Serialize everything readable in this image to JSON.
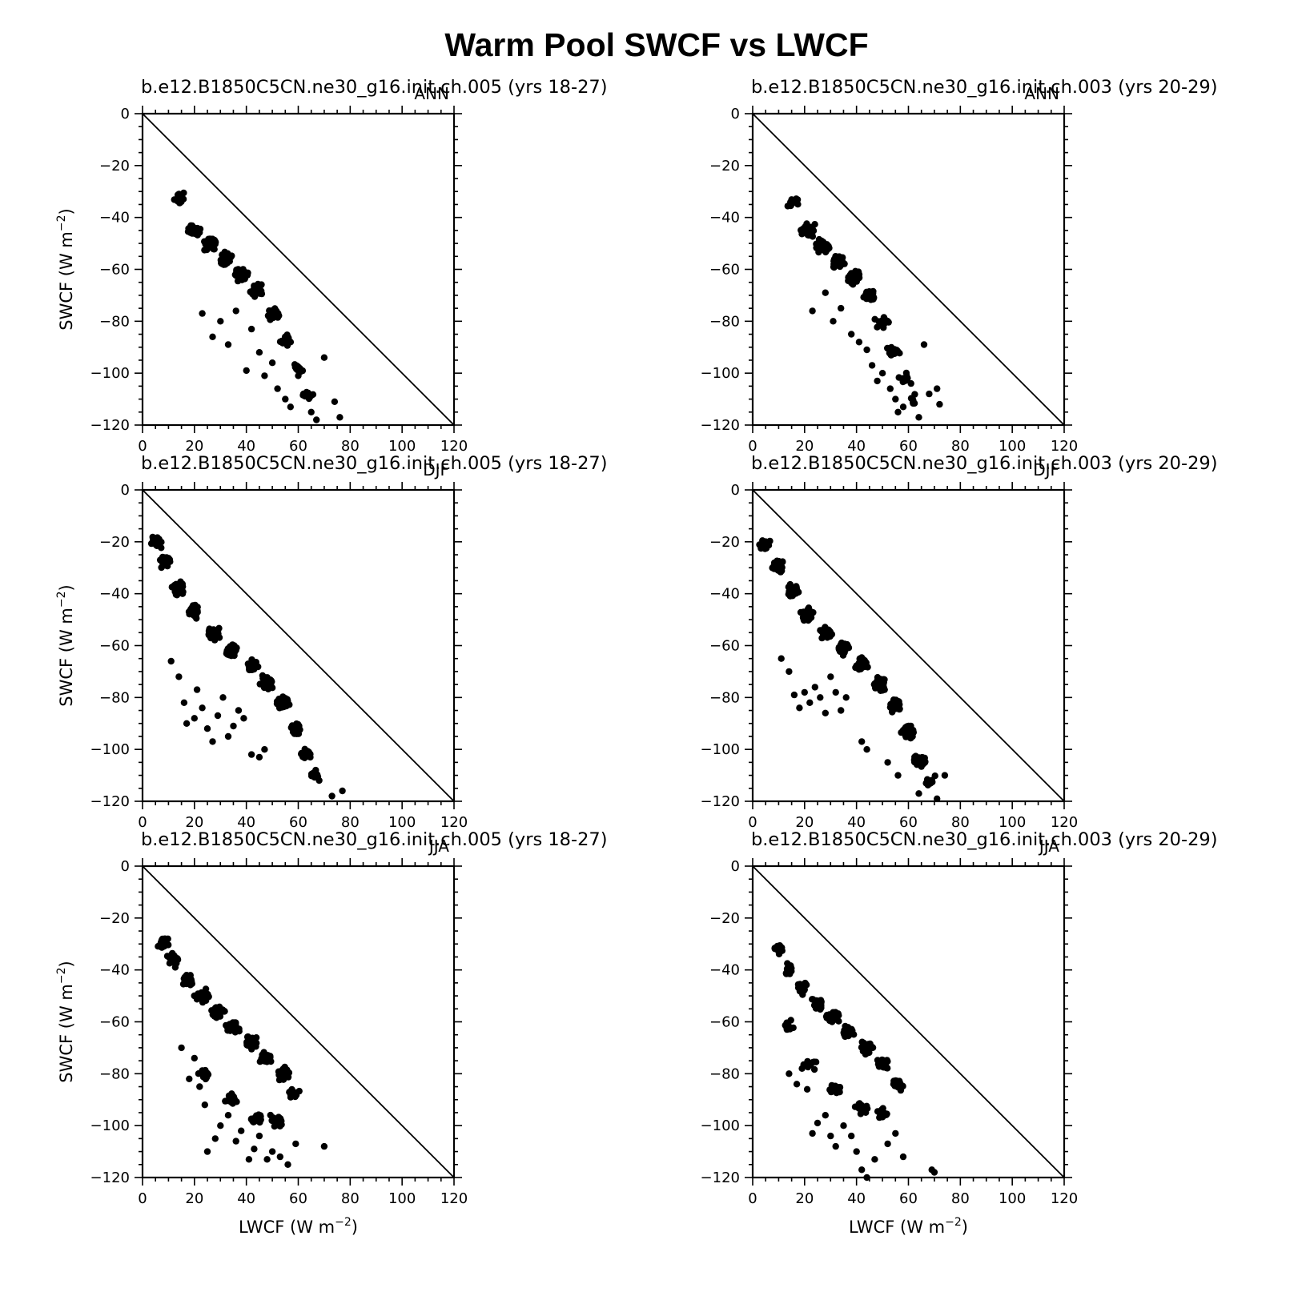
{
  "figure": {
    "title": "Warm Pool SWCF vs LWCF"
  },
  "chart_data": [
    {
      "type": "scatter",
      "panel_title": "b.e12.B1850C5CN.ne30_g16.init.ch.005 (yrs 18-27)",
      "season": "ANN",
      "xlabel": "",
      "ylabel": "SWCF (W m⁻²)",
      "xlim": [
        0,
        120
      ],
      "ylim": [
        -120,
        0
      ],
      "x_ticks": [
        "0",
        "20",
        "40",
        "60",
        "80",
        "100",
        "120"
      ],
      "y_ticks": [
        "0",
        "-20",
        "-40",
        "-60",
        "-80",
        "-100",
        "-120"
      ],
      "reference_line": {
        "from": [
          0,
          0
        ],
        "to": [
          120,
          -120
        ]
      },
      "cloud": [
        {
          "x": 14,
          "y": -33,
          "n": 14
        },
        {
          "x": 20,
          "y": -45,
          "n": 40
        },
        {
          "x": 26,
          "y": -50,
          "n": 55
        },
        {
          "x": 32,
          "y": -56,
          "n": 60
        },
        {
          "x": 38,
          "y": -62,
          "n": 55
        },
        {
          "x": 44,
          "y": -68,
          "n": 45
        },
        {
          "x": 50,
          "y": -77,
          "n": 30
        },
        {
          "x": 55,
          "y": -87,
          "n": 18
        },
        {
          "x": 60,
          "y": -98,
          "n": 12
        },
        {
          "x": 64,
          "y": -108,
          "n": 8
        }
      ],
      "x": [
        23,
        27,
        30,
        33,
        36,
        40,
        42,
        45,
        47,
        50,
        52,
        55,
        57,
        60,
        62,
        65,
        67,
        70,
        74,
        76
      ],
      "y": [
        -77,
        -86,
        -80,
        -89,
        -76,
        -99,
        -83,
        -92,
        -101,
        -96,
        -106,
        -110,
        -113,
        -101,
        -108,
        -115,
        -118,
        -94,
        -111,
        -117
      ]
    },
    {
      "type": "scatter",
      "panel_title": "b.e12.B1850C5CN.ne30_g16.init.ch.003 (yrs 20-29)",
      "season": "ANN",
      "xlabel": "",
      "ylabel": "",
      "xlim": [
        0,
        120
      ],
      "ylim": [
        -120,
        0
      ],
      "x_ticks": [
        "0",
        "20",
        "40",
        "60",
        "80",
        "100",
        "120"
      ],
      "y_ticks": [
        "0",
        "-20",
        "-40",
        "-60",
        "-80",
        "-100",
        "-120"
      ],
      "reference_line": {
        "from": [
          0,
          0
        ],
        "to": [
          120,
          -120
        ]
      },
      "cloud": [
        {
          "x": 16,
          "y": -34,
          "n": 14
        },
        {
          "x": 21,
          "y": -45,
          "n": 40
        },
        {
          "x": 27,
          "y": -51,
          "n": 55
        },
        {
          "x": 33,
          "y": -57,
          "n": 55
        },
        {
          "x": 39,
          "y": -63,
          "n": 50
        },
        {
          "x": 45,
          "y": -70,
          "n": 40
        },
        {
          "x": 50,
          "y": -80,
          "n": 25
        },
        {
          "x": 54,
          "y": -92,
          "n": 18
        },
        {
          "x": 58,
          "y": -102,
          "n": 12
        },
        {
          "x": 62,
          "y": -111,
          "n": 8
        }
      ],
      "x": [
        23,
        28,
        31,
        34,
        38,
        41,
        44,
        46,
        48,
        50,
        53,
        55,
        58,
        61,
        64,
        66,
        68,
        72,
        71,
        56
      ],
      "y": [
        -76,
        -69,
        -80,
        -75,
        -85,
        -88,
        -91,
        -97,
        -103,
        -100,
        -106,
        -110,
        -113,
        -104,
        -117,
        -89,
        -108,
        -112,
        -106,
        -115
      ]
    },
    {
      "type": "scatter",
      "panel_title": "b.e12.B1850C5CN.ne30_g16.init.ch.005 (yrs 18-27)",
      "season": "DJF",
      "xlabel": "",
      "ylabel": "SWCF (W m⁻²)",
      "xlim": [
        0,
        120
      ],
      "ylim": [
        -120,
        0
      ],
      "x_ticks": [
        "0",
        "20",
        "40",
        "60",
        "80",
        "100",
        "120"
      ],
      "y_ticks": [
        "0",
        "-20",
        "-40",
        "-60",
        "-80",
        "-100",
        "-120"
      ],
      "reference_line": {
        "from": [
          0,
          0
        ],
        "to": [
          120,
          -120
        ]
      },
      "cloud": [
        {
          "x": 5,
          "y": -20,
          "n": 18
        },
        {
          "x": 9,
          "y": -28,
          "n": 30
        },
        {
          "x": 14,
          "y": -38,
          "n": 40
        },
        {
          "x": 20,
          "y": -47,
          "n": 45
        },
        {
          "x": 27,
          "y": -55,
          "n": 45
        },
        {
          "x": 34,
          "y": -62,
          "n": 40
        },
        {
          "x": 42,
          "y": -68,
          "n": 40
        },
        {
          "x": 48,
          "y": -74,
          "n": 45
        },
        {
          "x": 54,
          "y": -82,
          "n": 45
        },
        {
          "x": 59,
          "y": -92,
          "n": 35
        },
        {
          "x": 63,
          "y": -102,
          "n": 25
        },
        {
          "x": 67,
          "y": -110,
          "n": 12
        }
      ],
      "x": [
        11,
        14,
        16,
        17,
        20,
        21,
        23,
        25,
        27,
        29,
        31,
        33,
        35,
        37,
        39,
        42,
        45,
        47,
        73,
        77
      ],
      "y": [
        -66,
        -72,
        -82,
        -90,
        -88,
        -77,
        -84,
        -92,
        -97,
        -87,
        -80,
        -95,
        -91,
        -85,
        -88,
        -102,
        -103,
        -100,
        -118,
        -116
      ]
    },
    {
      "type": "scatter",
      "panel_title": "b.e12.B1850C5CN.ne30_g16.init.ch.003 (yrs 20-29)",
      "season": "DJF",
      "xlabel": "",
      "ylabel": "",
      "xlim": [
        0,
        120
      ],
      "ylim": [
        -120,
        0
      ],
      "x_ticks": [
        "0",
        "20",
        "40",
        "60",
        "80",
        "100",
        "120"
      ],
      "y_ticks": [
        "0",
        "-20",
        "-40",
        "-60",
        "-80",
        "-100",
        "-120"
      ],
      "reference_line": {
        "from": [
          0,
          0
        ],
        "to": [
          120,
          -120
        ]
      },
      "cloud": [
        {
          "x": 5,
          "y": -21,
          "n": 18
        },
        {
          "x": 10,
          "y": -29,
          "n": 30
        },
        {
          "x": 15,
          "y": -39,
          "n": 40
        },
        {
          "x": 21,
          "y": -48,
          "n": 45
        },
        {
          "x": 28,
          "y": -55,
          "n": 45
        },
        {
          "x": 35,
          "y": -61,
          "n": 40
        },
        {
          "x": 42,
          "y": -67,
          "n": 40
        },
        {
          "x": 49,
          "y": -75,
          "n": 45
        },
        {
          "x": 55,
          "y": -83,
          "n": 45
        },
        {
          "x": 60,
          "y": -93,
          "n": 35
        },
        {
          "x": 64,
          "y": -104,
          "n": 25
        },
        {
          "x": 68,
          "y": -112,
          "n": 12
        }
      ],
      "x": [
        11,
        14,
        16,
        18,
        20,
        22,
        24,
        26,
        28,
        30,
        32,
        34,
        36,
        42,
        44,
        52,
        56,
        64,
        71,
        74
      ],
      "y": [
        -65,
        -70,
        -79,
        -84,
        -78,
        -82,
        -76,
        -80,
        -86,
        -72,
        -78,
        -85,
        -80,
        -97,
        -100,
        -105,
        -110,
        -117,
        -119,
        -110
      ]
    },
    {
      "type": "scatter",
      "panel_title": "b.e12.B1850C5CN.ne30_g16.init.ch.005 (yrs 18-27)",
      "season": "JJA",
      "xlabel": "LWCF (W m⁻²)",
      "ylabel": "SWCF (W m⁻²)",
      "xlim": [
        0,
        120
      ],
      "ylim": [
        -120,
        0
      ],
      "x_ticks": [
        "0",
        "20",
        "40",
        "60",
        "80",
        "100",
        "120"
      ],
      "y_ticks": [
        "0",
        "-20",
        "-40",
        "-60",
        "-80",
        "-100",
        "-120"
      ],
      "reference_line": {
        "from": [
          0,
          0
        ],
        "to": [
          120,
          -120
        ]
      },
      "cloud": [
        {
          "x": 8,
          "y": -30,
          "n": 14
        },
        {
          "x": 12,
          "y": -36,
          "n": 20
        },
        {
          "x": 17,
          "y": -44,
          "n": 25
        },
        {
          "x": 23,
          "y": -50,
          "n": 30
        },
        {
          "x": 29,
          "y": -56,
          "n": 35
        },
        {
          "x": 35,
          "y": -62,
          "n": 35
        },
        {
          "x": 42,
          "y": -68,
          "n": 35
        },
        {
          "x": 48,
          "y": -74,
          "n": 30
        },
        {
          "x": 54,
          "y": -80,
          "n": 25
        },
        {
          "x": 58,
          "y": -88,
          "n": 18
        },
        {
          "x": 52,
          "y": -98,
          "n": 25
        },
        {
          "x": 44,
          "y": -97,
          "n": 20
        },
        {
          "x": 34,
          "y": -90,
          "n": 18
        },
        {
          "x": 24,
          "y": -80,
          "n": 15
        }
      ],
      "x": [
        15,
        18,
        20,
        22,
        24,
        25,
        28,
        30,
        33,
        36,
        38,
        41,
        43,
        45,
        48,
        50,
        53,
        56,
        59,
        70
      ],
      "y": [
        -70,
        -82,
        -74,
        -85,
        -92,
        -110,
        -105,
        -100,
        -96,
        -106,
        -102,
        -113,
        -109,
        -104,
        -113,
        -110,
        -112,
        -115,
        -107,
        -108
      ]
    },
    {
      "type": "scatter",
      "panel_title": "b.e12.B1850C5CN.ne30_g16.init.ch.003 (yrs 20-29)",
      "season": "JJA",
      "xlabel": "LWCF (W m⁻²)",
      "ylabel": "",
      "xlim": [
        0,
        120
      ],
      "ylim": [
        -120,
        0
      ],
      "x_ticks": [
        "0",
        "20",
        "40",
        "60",
        "80",
        "100",
        "120"
      ],
      "y_ticks": [
        "0",
        "-20",
        "-40",
        "-60",
        "-80",
        "-100",
        "-120"
      ],
      "reference_line": {
        "from": [
          0,
          0
        ],
        "to": [
          120,
          -120
        ]
      },
      "cloud": [
        {
          "x": 10,
          "y": -32,
          "n": 14
        },
        {
          "x": 14,
          "y": -40,
          "n": 20
        },
        {
          "x": 19,
          "y": -47,
          "n": 25
        },
        {
          "x": 25,
          "y": -53,
          "n": 30
        },
        {
          "x": 31,
          "y": -58,
          "n": 35
        },
        {
          "x": 37,
          "y": -64,
          "n": 35
        },
        {
          "x": 44,
          "y": -70,
          "n": 35
        },
        {
          "x": 50,
          "y": -76,
          "n": 30
        },
        {
          "x": 56,
          "y": -84,
          "n": 25
        },
        {
          "x": 50,
          "y": -95,
          "n": 25
        },
        {
          "x": 42,
          "y": -93,
          "n": 20
        },
        {
          "x": 32,
          "y": -86,
          "n": 18
        },
        {
          "x": 22,
          "y": -76,
          "n": 15
        },
        {
          "x": 14,
          "y": -62,
          "n": 15
        }
      ],
      "x": [
        14,
        17,
        19,
        21,
        23,
        25,
        28,
        30,
        32,
        35,
        38,
        40,
        42,
        44,
        47,
        52,
        55,
        58,
        69,
        70
      ],
      "y": [
        -80,
        -84,
        -78,
        -86,
        -103,
        -99,
        -96,
        -104,
        -108,
        -100,
        -104,
        -110,
        -117,
        -120,
        -113,
        -107,
        -103,
        -112,
        -117,
        -118
      ]
    }
  ]
}
